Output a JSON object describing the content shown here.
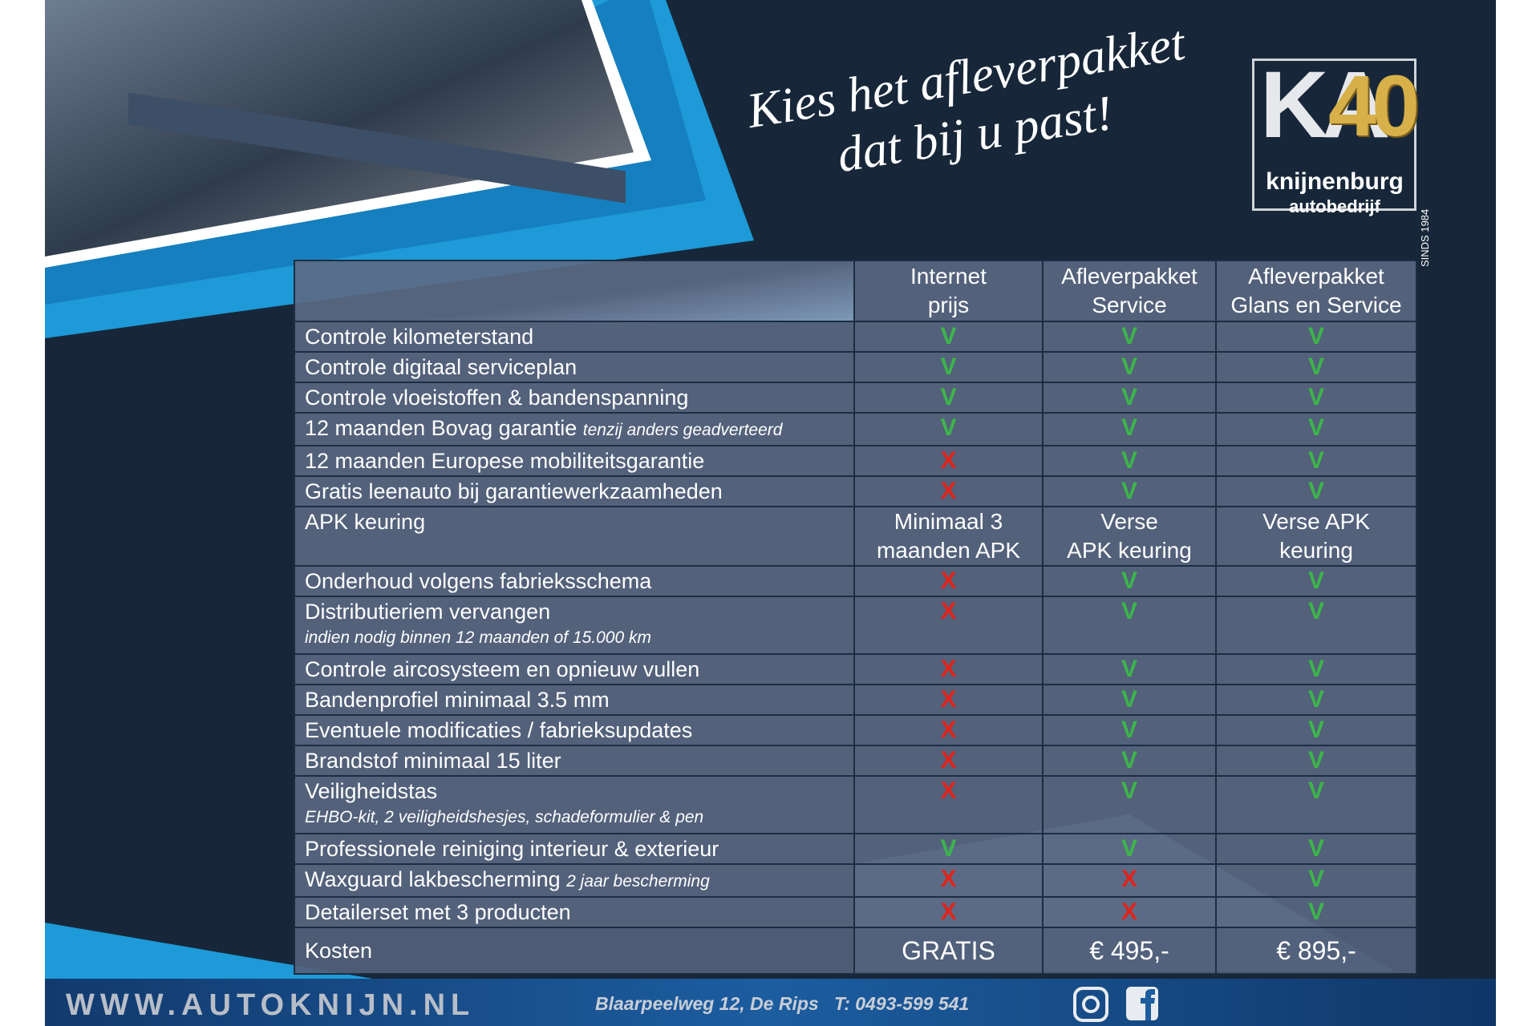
{
  "header": {
    "title": [
      "Kies het afleverpakket",
      "dat bij u past!"
    ],
    "logo": {
      "letters": "KA",
      "anniversary": "40",
      "name": "knijnenburg",
      "subname": "autobedrijf",
      "since": "SINDS 1984"
    }
  },
  "table": {
    "columns": [
      [
        "Internet",
        "prijs"
      ],
      [
        "Afleverpakket",
        "Service"
      ],
      [
        "Afleverpakket",
        "Glans en Service"
      ]
    ],
    "rows": [
      {
        "label": "Controle kilometerstand",
        "cells": [
          {
            "text": "V",
            "color": "#3cb54a"
          },
          {
            "text": "V",
            "color": "#3cb54a"
          },
          {
            "text": "V",
            "color": "#3cb54a"
          }
        ]
      },
      {
        "label": "Controle digitaal serviceplan",
        "cells": [
          {
            "text": "V",
            "color": "#3cb54a"
          },
          {
            "text": "V",
            "color": "#3cb54a"
          },
          {
            "text": "V",
            "color": "#3cb54a"
          }
        ]
      },
      {
        "label": "Controle vloeistoffen & bandenspanning",
        "cells": [
          {
            "text": "V",
            "color": "#3cb54a"
          },
          {
            "text": "V",
            "color": "#3cb54a"
          },
          {
            "text": "V",
            "color": "#3cb54a"
          }
        ]
      },
      {
        "label": "12 maanden Bovag garantie",
        "note": "tenzij anders geadverteerd",
        "cells": [
          {
            "text": "V",
            "color": "#3cb54a"
          },
          {
            "text": "V",
            "color": "#3cb54a"
          },
          {
            "text": "V",
            "color": "#3cb54a"
          }
        ]
      },
      {
        "label": "12 maanden Europese mobiliteitsgarantie",
        "cells": [
          {
            "text": "X",
            "color": "#e2231a"
          },
          {
            "text": "V",
            "color": "#3cb54a"
          },
          {
            "text": "V",
            "color": "#3cb54a"
          }
        ]
      },
      {
        "label": "Gratis leenauto bij garantiewerkzaamheden",
        "cells": [
          {
            "text": "X",
            "color": "#e2231a"
          },
          {
            "text": "V",
            "color": "#3cb54a"
          },
          {
            "text": "V",
            "color": "#3cb54a"
          }
        ]
      },
      {
        "label": "APK keuring",
        "cells": [
          [
            "Minimaal 3",
            "maanden APK"
          ],
          [
            "Verse",
            "APK keuring"
          ],
          [
            "Verse APK",
            "keuring"
          ]
        ]
      },
      {
        "label": "Onderhoud volgens fabrieksschema",
        "cells": [
          {
            "text": "X",
            "color": "#e2231a"
          },
          {
            "text": "V",
            "color": "#3cb54a"
          },
          {
            "text": "V",
            "color": "#3cb54a"
          }
        ]
      },
      {
        "label": "Distributieriem vervangen",
        "subnote": "indien nodig binnen 12 maanden of 15.000 km",
        "cells": [
          {
            "text": "X",
            "color": "#e2231a"
          },
          {
            "text": "V",
            "color": "#3cb54a"
          },
          {
            "text": "V",
            "color": "#3cb54a"
          }
        ]
      },
      {
        "label": "Controle aircosysteem en opnieuw vullen",
        "cells": [
          {
            "text": "X",
            "color": "#e2231a"
          },
          {
            "text": "V",
            "color": "#3cb54a"
          },
          {
            "text": "V",
            "color": "#3cb54a"
          }
        ]
      },
      {
        "label": "Bandenprofiel minimaal 3.5 mm",
        "cells": [
          {
            "text": "X",
            "color": "#e2231a"
          },
          {
            "text": "V",
            "color": "#3cb54a"
          },
          {
            "text": "V",
            "color": "#3cb54a"
          }
        ]
      },
      {
        "label": "Eventuele modificaties / fabrieksupdates",
        "cells": [
          {
            "text": "X",
            "color": "#e2231a"
          },
          {
            "text": "V",
            "color": "#3cb54a"
          },
          {
            "text": "V",
            "color": "#3cb54a"
          }
        ]
      },
      {
        "label": "Brandstof minimaal 15 liter",
        "cells": [
          {
            "text": "X",
            "color": "#e2231a"
          },
          {
            "text": "V",
            "color": "#3cb54a"
          },
          {
            "text": "V",
            "color": "#3cb54a"
          }
        ]
      },
      {
        "label": "Veiligheidstas",
        "subnote": "EHBO-kit, 2 veiligheidshesjes, schadeformulier & pen",
        "cells": [
          {
            "text": "X",
            "color": "#e2231a"
          },
          {
            "text": "V",
            "color": "#3cb54a"
          },
          {
            "text": "V",
            "color": "#3cb54a"
          }
        ]
      },
      {
        "label": "Professionele reiniging interieur & exterieur",
        "cells": [
          {
            "text": "V",
            "color": "#3cb54a"
          },
          {
            "text": "V",
            "color": "#3cb54a"
          },
          {
            "text": "V",
            "color": "#3cb54a"
          }
        ]
      },
      {
        "label": "Waxguard lakbescherming",
        "note": "2 jaar bescherming",
        "cells": [
          {
            "text": "X",
            "color": "#e2231a"
          },
          {
            "text": "X",
            "color": "#e2231a"
          },
          {
            "text": "V",
            "color": "#3cb54a"
          }
        ]
      },
      {
        "label": "Detailerset met 3 producten",
        "cells": [
          {
            "text": "X",
            "color": "#e2231a"
          },
          {
            "text": "X",
            "color": "#e2231a"
          },
          {
            "text": "V",
            "color": "#3cb54a"
          }
        ]
      }
    ],
    "cost": {
      "label": "Kosten",
      "cells": [
        "GRATIS",
        "€ 495,-",
        "€ 895,-"
      ]
    }
  },
  "footer": {
    "website": "WWW.AUTOKNIJN.NL",
    "address": "Blaarpeelweg 12, De Rips",
    "phone": "T: 0493-599 541"
  }
}
